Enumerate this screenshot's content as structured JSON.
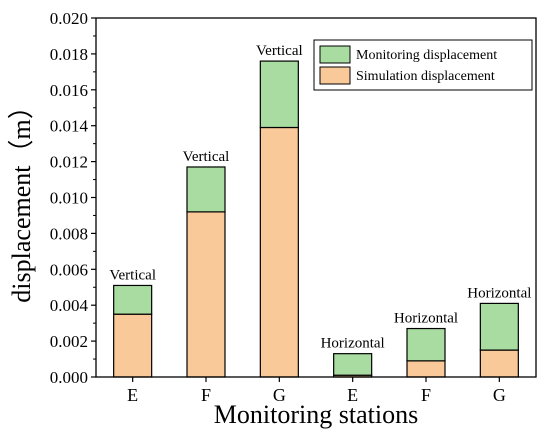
{
  "chart_data": {
    "type": "bar",
    "stacked": true,
    "categories": [
      "E",
      "F",
      "G",
      "E",
      "F",
      "G"
    ],
    "annotations": [
      "Vertical",
      "Vertical",
      "Vertical",
      "Horizontal",
      "Horizontal",
      "Horizontal"
    ],
    "series": [
      {
        "name": "Simulation displacement",
        "color": "#f9c99a",
        "values": [
          0.0035,
          0.0092,
          0.0139,
          0.0001,
          0.0009,
          0.0015
        ]
      },
      {
        "name": "Monitoring displacement",
        "color": "#a8dca0",
        "values": [
          0.0016,
          0.0025,
          0.0037,
          0.0012,
          0.0018,
          0.0026
        ]
      }
    ],
    "legend_order": [
      "Monitoring displacement",
      "Simulation displacement"
    ],
    "legend_position": "top-right",
    "xlabel": "Monitoring stations",
    "ylabel": "displacement（m）",
    "ylim": [
      0,
      0.02
    ],
    "yticks": [
      "0.000",
      "0.002",
      "0.004",
      "0.006",
      "0.008",
      "0.010",
      "0.012",
      "0.014",
      "0.016",
      "0.018",
      "0.020"
    ],
    "grid": false
  }
}
